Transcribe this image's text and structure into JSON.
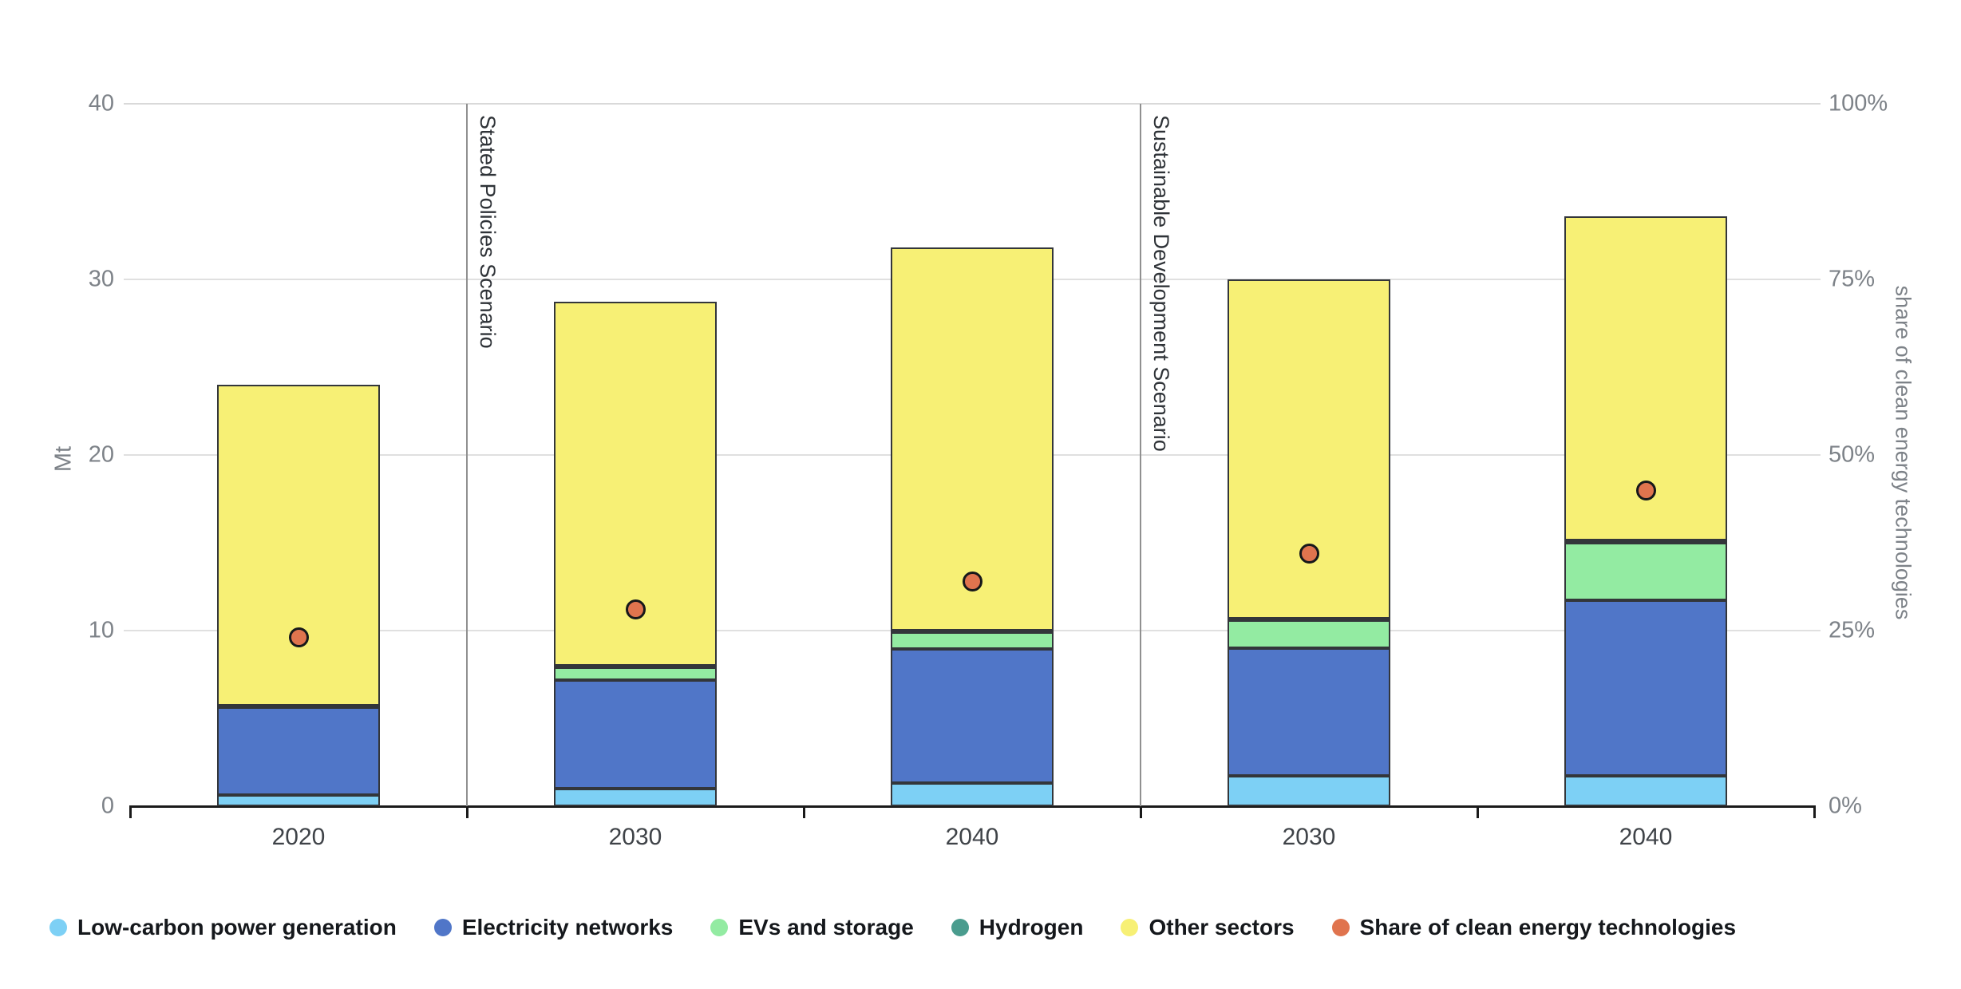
{
  "chart_data": {
    "type": "bar",
    "stacked": true,
    "categories": [
      "2020",
      "2030",
      "2040",
      "2030",
      "2040"
    ],
    "scenario_dividers": [
      {
        "boundary_index": 1,
        "label": "Stated Policies Scenario"
      },
      {
        "boundary_index": 3,
        "label": "Sustainable Development Scenario"
      }
    ],
    "series": [
      {
        "name": "Low-carbon power generation",
        "color": "#7DD0F5",
        "values": [
          0.65,
          1.0,
          1.3,
          1.75,
          1.75
        ]
      },
      {
        "name": "Electricity networks",
        "color": "#5076C8",
        "values": [
          5.05,
          6.2,
          7.65,
          7.25,
          10.0
        ]
      },
      {
        "name": "EVs and storage",
        "color": "#93EBA2",
        "values": [
          0.05,
          0.8,
          1.0,
          1.65,
          3.25
        ]
      },
      {
        "name": "Hydrogen",
        "color": "#4A9C8E",
        "values": [
          0.0,
          0.02,
          0.05,
          0.05,
          0.15
        ]
      },
      {
        "name": "Other sectors",
        "color": "#F7F075",
        "values": [
          18.25,
          20.7,
          21.8,
          19.3,
          18.45
        ]
      }
    ],
    "totals_mt": [
      24.0,
      28.7,
      31.8,
      30.0,
      33.6
    ],
    "dot_series": {
      "name": "Share of clean energy technologies",
      "color": "#E0744E",
      "values_pct": [
        24,
        28,
        32,
        36,
        45
      ]
    },
    "ylabel_left": "Mt",
    "ylabel_right": "share of clean energy technologies",
    "y_left": {
      "min": 0,
      "max": 40,
      "ticks": [
        0,
        10,
        20,
        30,
        40
      ],
      "tick_labels": [
        "0",
        "10",
        "20",
        "30",
        "40"
      ]
    },
    "y_right": {
      "min": 0,
      "max": 100,
      "tick_labels": [
        "0%",
        "25%",
        "50%",
        "75%",
        "100%"
      ]
    },
    "grid": true,
    "legend_position": "bottom",
    "legend": [
      {
        "name": "Low-carbon power generation",
        "color": "#7DD0F5"
      },
      {
        "name": "Electricity networks",
        "color": "#5076C8"
      },
      {
        "name": "EVs and storage",
        "color": "#93EBA2"
      },
      {
        "name": "Hydrogen",
        "color": "#4A9C8E"
      },
      {
        "name": "Other sectors",
        "color": "#F7F075"
      },
      {
        "name": "Share of clean energy technologies",
        "color": "#E0744E"
      }
    ],
    "colors": {
      "axis": "#1a1a1a",
      "gridline": "#e0e0e0",
      "divider": "#909090",
      "tick_text": "#7d8288",
      "category_text": "#3f4348"
    }
  }
}
